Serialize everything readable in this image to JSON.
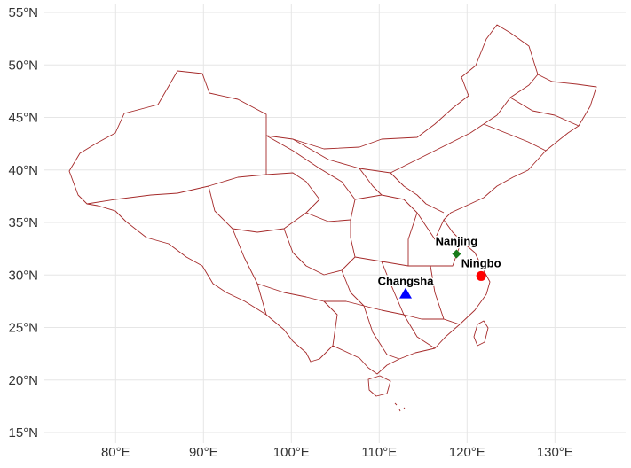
{
  "map": {
    "lon_ticks": [
      {
        "value": 80,
        "label": "80°E"
      },
      {
        "value": 90,
        "label": "90°E"
      },
      {
        "value": 100,
        "label": "100°E"
      },
      {
        "value": 110,
        "label": "110°E"
      },
      {
        "value": 120,
        "label": "120°E"
      },
      {
        "value": 130,
        "label": "130°E"
      }
    ],
    "lat_ticks": [
      {
        "value": 15,
        "label": "15°N"
      },
      {
        "value": 20,
        "label": "20°N"
      },
      {
        "value": 25,
        "label": "25°N"
      },
      {
        "value": 30,
        "label": "30°N"
      },
      {
        "value": 35,
        "label": "35°N"
      },
      {
        "value": 40,
        "label": "40°N"
      },
      {
        "value": 45,
        "label": "45°N"
      },
      {
        "value": 50,
        "label": "50°N"
      },
      {
        "value": 55,
        "label": "55°N"
      }
    ],
    "lon_range": [
      73,
      135
    ],
    "lat_range": [
      15,
      55
    ],
    "grid": true,
    "border_color": "#a52a2a",
    "cities": [
      {
        "name": "Nanjing",
        "lon": 118.8,
        "lat": 32.0,
        "marker": "diamond",
        "color": "#1a7a1a"
      },
      {
        "name": "Ningbo",
        "lon": 121.6,
        "lat": 29.9,
        "marker": "circle",
        "color": "#ff0000"
      },
      {
        "name": "Changsha",
        "lon": 113.0,
        "lat": 28.2,
        "marker": "triangle",
        "color": "#0000ff"
      }
    ]
  }
}
